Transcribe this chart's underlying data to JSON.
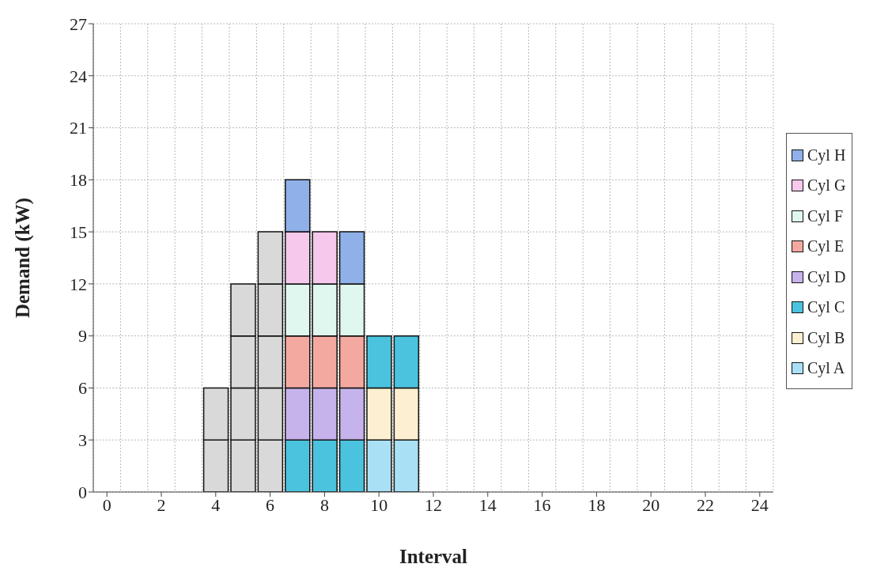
{
  "chart_data": {
    "type": "bar",
    "stacked": true,
    "xlabel": "Interval",
    "ylabel": "Demand (kW)",
    "x": [
      4,
      5,
      6,
      7,
      8,
      9,
      10,
      11
    ],
    "xlim": [
      -0.5,
      24.5
    ],
    "xticks": [
      0,
      2,
      4,
      6,
      8,
      10,
      12,
      14,
      16,
      18,
      20,
      22,
      24
    ],
    "ylim": [
      0,
      27
    ],
    "yticks": [
      0,
      3,
      6,
      9,
      12,
      15,
      18,
      21,
      24,
      27
    ],
    "grid": true,
    "legend": "right",
    "series": [
      {
        "color": "#d9d9d9",
        "values": [
          3,
          3,
          3,
          null,
          null,
          null,
          null,
          null
        ]
      },
      {
        "color": "#d9d9d9",
        "values": [
          3,
          3,
          3,
          null,
          null,
          null,
          null,
          null
        ]
      },
      {
        "color": "#d9d9d9",
        "values": [
          null,
          3,
          3,
          null,
          null,
          null,
          null,
          null
        ]
      },
      {
        "color": "#d9d9d9",
        "values": [
          null,
          3,
          3,
          null,
          null,
          null,
          null,
          null
        ]
      },
      {
        "color": "#d9d9d9",
        "values": [
          null,
          null,
          3,
          null,
          null,
          null,
          null,
          null
        ]
      },
      {
        "name": "Cyl A",
        "color": "#a9e0f6",
        "values": [
          null,
          null,
          null,
          null,
          null,
          null,
          3,
          3
        ]
      },
      {
        "name": "Cyl B",
        "color": "#fdf0d2",
        "values": [
          null,
          null,
          null,
          null,
          null,
          null,
          3,
          3
        ]
      },
      {
        "name": "Cyl C",
        "color": "#4bc3df",
        "values": [
          null,
          null,
          null,
          3,
          3,
          3,
          3,
          3
        ]
      },
      {
        "name": "Cyl D",
        "color": "#c6b3ec",
        "values": [
          null,
          null,
          null,
          3,
          3,
          3,
          null,
          null
        ]
      },
      {
        "name": "Cyl E",
        "color": "#f4a9a0",
        "values": [
          null,
          null,
          null,
          3,
          3,
          3,
          null,
          null
        ]
      },
      {
        "name": "Cyl F",
        "color": "#dff7ee",
        "values": [
          null,
          null,
          null,
          3,
          3,
          3,
          null,
          null
        ]
      },
      {
        "name": "Cyl G",
        "color": "#f5c8ec",
        "values": [
          null,
          null,
          null,
          3,
          3,
          null,
          null,
          null
        ]
      },
      {
        "name": "Cyl H",
        "color": "#8fb0e8",
        "values": [
          null,
          null,
          null,
          3,
          null,
          3,
          null,
          null
        ]
      }
    ]
  }
}
